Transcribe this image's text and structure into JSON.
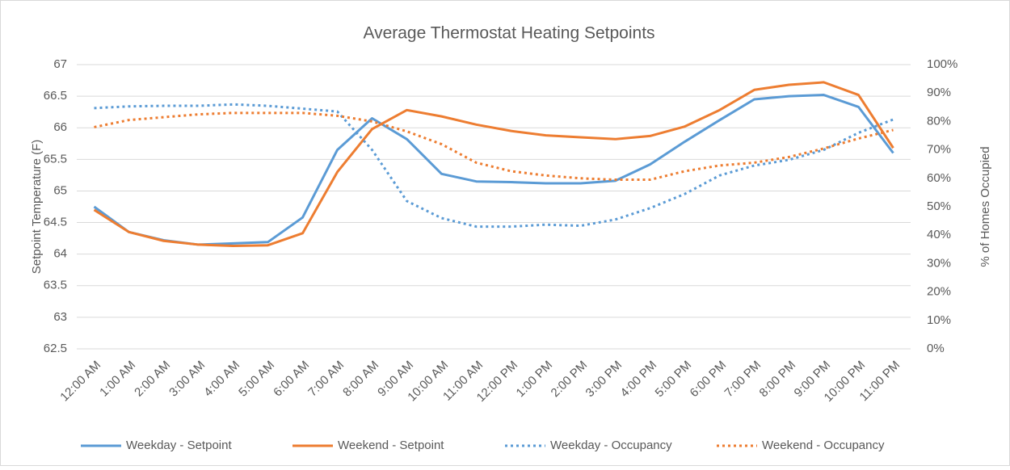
{
  "chart_data": {
    "type": "line",
    "title": "Average Thermostat Heating Setpoints",
    "y_label": "Setpoint Temperature (F)",
    "y2_label": "% of Homes Occupied",
    "categories": [
      "12:00 AM",
      "1:00 AM",
      "2:00 AM",
      "3:00 AM",
      "4:00 AM",
      "5:00 AM",
      "6:00 AM",
      "7:00 AM",
      "8:00 AM",
      "9:00 AM",
      "10:00 AM",
      "11:00 AM",
      "12:00 PM",
      "1:00 PM",
      "2:00 PM",
      "3:00 PM",
      "4:00 PM",
      "5:00 PM",
      "6:00 PM",
      "7:00 PM",
      "8:00 PM",
      "9:00 PM",
      "10:00 PM",
      "11:00 PM"
    ],
    "series": [
      {
        "name": "Weekday - Setpoint",
        "color": "#5b9bd5",
        "line_style": "solid",
        "values": [
          64.75,
          64.35,
          64.22,
          64.15,
          64.17,
          64.19,
          64.58,
          65.65,
          66.15,
          65.82,
          65.27,
          65.15,
          65.14,
          65.12,
          65.12,
          65.16,
          65.42,
          65.78,
          66.12,
          66.45,
          66.5,
          66.52,
          66.33,
          65.6
        ]
      },
      {
        "name": "Weekend - Setpoint",
        "color": "#ed7d31",
        "line_style": "solid",
        "values": [
          64.7,
          64.35,
          64.21,
          64.15,
          64.13,
          64.14,
          64.33,
          65.3,
          65.98,
          66.28,
          66.18,
          66.05,
          65.95,
          65.88,
          65.85,
          65.82,
          65.87,
          66.02,
          66.28,
          66.6,
          66.68,
          66.72,
          66.52,
          65.68
        ]
      },
      {
        "name": "Weekday - Occupancy",
        "color": "#5b9bd5",
        "line_style": "dotted",
        "axis": "y2",
        "values": [
          84.7,
          85.3,
          85.5,
          85.5,
          86,
          85.5,
          84.5,
          83.5,
          70,
          52,
          46,
          43,
          43,
          43.7,
          43.3,
          45.5,
          49.5,
          54.5,
          61,
          64.5,
          66.5,
          70,
          76,
          80.7
        ]
      },
      {
        "name": "Weekend - Occupancy",
        "color": "#ed7d31",
        "line_style": "dotted",
        "axis": "y2",
        "values": [
          78,
          80.5,
          81.5,
          82.5,
          83,
          83,
          83,
          82,
          80,
          76.5,
          72,
          65.5,
          62.5,
          61,
          60,
          59.5,
          59.5,
          62.5,
          64.5,
          65.5,
          67.5,
          70.5,
          74,
          77
        ]
      }
    ],
    "ylim": [
      62.5,
      67
    ],
    "yticks": [
      62.5,
      63,
      63.5,
      64,
      64.5,
      65,
      65.5,
      66,
      66.5,
      67
    ],
    "y2lim": [
      0,
      100
    ],
    "y2ticks": [
      {
        "value": 0,
        "label": "0%"
      },
      {
        "value": 10,
        "label": "10%"
      },
      {
        "value": 20,
        "label": "20%"
      },
      {
        "value": 30,
        "label": "30%"
      },
      {
        "value": 40,
        "label": "40%"
      },
      {
        "value": 50,
        "label": "50%"
      },
      {
        "value": 60,
        "label": "60%"
      },
      {
        "value": 70,
        "label": "70%"
      },
      {
        "value": 80,
        "label": "80%"
      },
      {
        "value": 90,
        "label": "90%"
      },
      {
        "value": 100,
        "label": "100%"
      }
    ],
    "grid": true,
    "legend": "bottom"
  }
}
